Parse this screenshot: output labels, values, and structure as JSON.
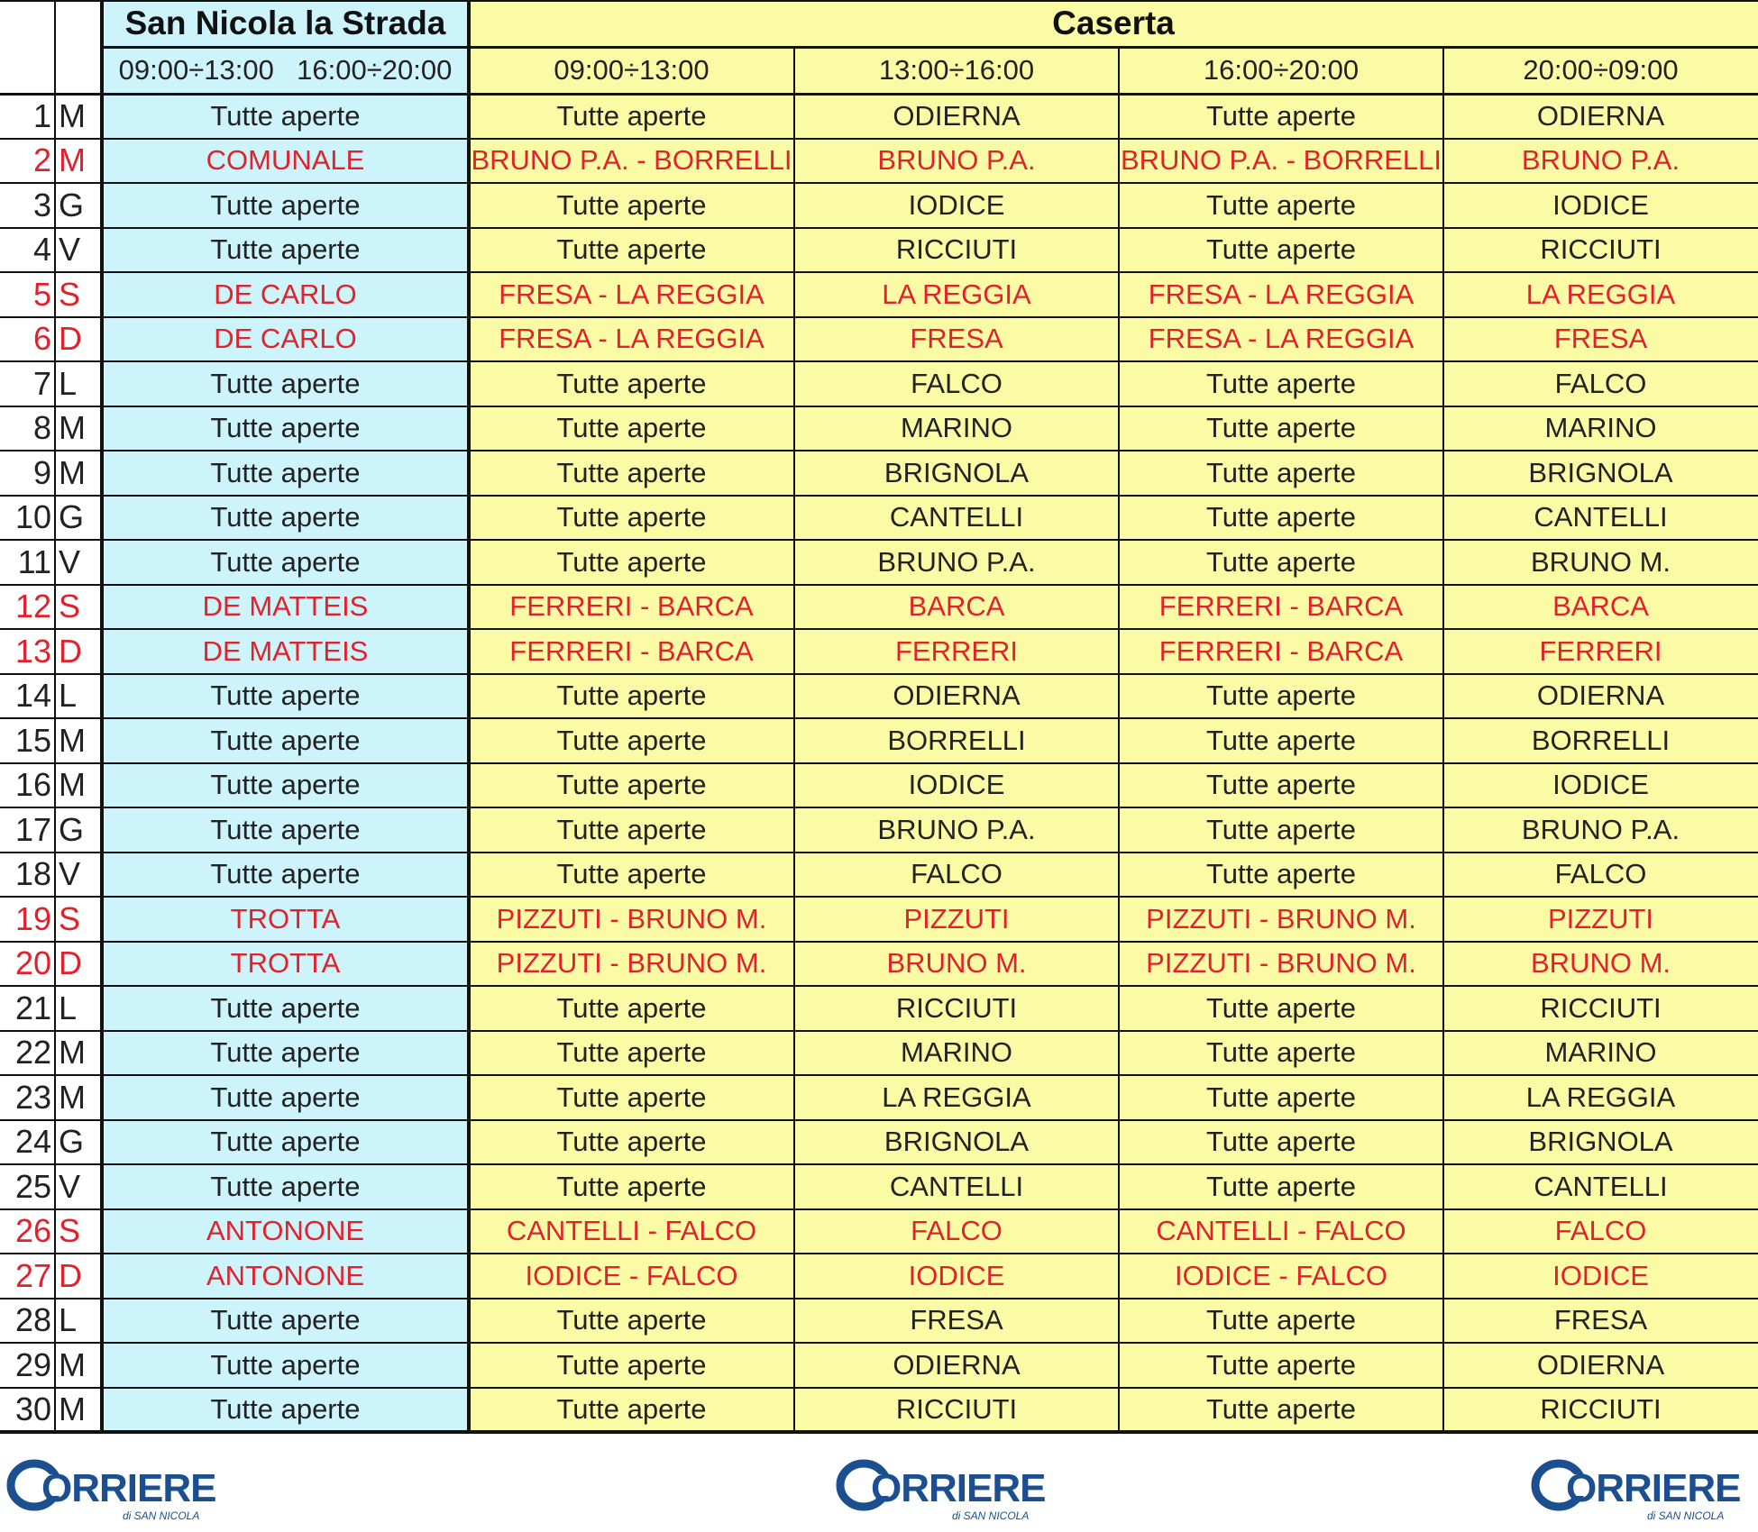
{
  "header": {
    "san_nicola_title": "San Nicola la Strada",
    "caserta_title": "Caserta",
    "san_nicola_times": [
      "09:00÷13:00",
      "16:00÷20:00"
    ],
    "caserta_times": [
      "09:00÷13:00",
      "13:00÷16:00",
      "16:00÷20:00",
      "20:00÷09:00"
    ]
  },
  "rows": [
    {
      "day": "1",
      "letter": "M",
      "sn": "Tutte aperte",
      "c": [
        "Tutte aperte",
        "ODIERNA",
        "Tutte aperte",
        "ODIERNA"
      ],
      "holiday": false
    },
    {
      "day": "2",
      "letter": "M",
      "sn": "COMUNALE",
      "c": [
        "BRUNO P.A. - BORRELLI",
        "BRUNO P.A.",
        "BRUNO P.A. - BORRELLI",
        "BRUNO P.A."
      ],
      "holiday": true
    },
    {
      "day": "3",
      "letter": "G",
      "sn": "Tutte aperte",
      "c": [
        "Tutte aperte",
        "IODICE",
        "Tutte aperte",
        "IODICE"
      ],
      "holiday": false
    },
    {
      "day": "4",
      "letter": "V",
      "sn": "Tutte aperte",
      "c": [
        "Tutte aperte",
        "RICCIUTI",
        "Tutte aperte",
        "RICCIUTI"
      ],
      "holiday": false
    },
    {
      "day": "5",
      "letter": "S",
      "sn": "DE CARLO",
      "c": [
        "FRESA - LA REGGIA",
        "LA REGGIA",
        "FRESA - LA REGGIA",
        "LA REGGIA"
      ],
      "holiday": true
    },
    {
      "day": "6",
      "letter": "D",
      "sn": "DE CARLO",
      "c": [
        "FRESA - LA REGGIA",
        "FRESA",
        "FRESA - LA REGGIA",
        "FRESA"
      ],
      "holiday": true
    },
    {
      "day": "7",
      "letter": "L",
      "sn": "Tutte aperte",
      "c": [
        "Tutte aperte",
        "FALCO",
        "Tutte aperte",
        "FALCO"
      ],
      "holiday": false
    },
    {
      "day": "8",
      "letter": "M",
      "sn": "Tutte aperte",
      "c": [
        "Tutte aperte",
        "MARINO",
        "Tutte aperte",
        "MARINO"
      ],
      "holiday": false
    },
    {
      "day": "9",
      "letter": "M",
      "sn": "Tutte aperte",
      "c": [
        "Tutte aperte",
        "BRIGNOLA",
        "Tutte aperte",
        "BRIGNOLA"
      ],
      "holiday": false
    },
    {
      "day": "10",
      "letter": "G",
      "sn": "Tutte aperte",
      "c": [
        "Tutte aperte",
        "CANTELLI",
        "Tutte aperte",
        "CANTELLI"
      ],
      "holiday": false
    },
    {
      "day": "11",
      "letter": "V",
      "sn": "Tutte aperte",
      "c": [
        "Tutte aperte",
        "BRUNO P.A.",
        "Tutte aperte",
        "BRUNO M."
      ],
      "holiday": false
    },
    {
      "day": "12",
      "letter": "S",
      "sn": "DE MATTEIS",
      "c": [
        "FERRERI - BARCA",
        "BARCA",
        "FERRERI - BARCA",
        "BARCA"
      ],
      "holiday": true
    },
    {
      "day": "13",
      "letter": "D",
      "sn": "DE MATTEIS",
      "c": [
        "FERRERI - BARCA",
        "FERRERI",
        "FERRERI - BARCA",
        "FERRERI"
      ],
      "holiday": true
    },
    {
      "day": "14",
      "letter": "L",
      "sn": "Tutte aperte",
      "c": [
        "Tutte aperte",
        "ODIERNA",
        "Tutte aperte",
        "ODIERNA"
      ],
      "holiday": false
    },
    {
      "day": "15",
      "letter": "M",
      "sn": "Tutte aperte",
      "c": [
        "Tutte aperte",
        "BORRELLI",
        "Tutte aperte",
        "BORRELLI"
      ],
      "holiday": false
    },
    {
      "day": "16",
      "letter": "M",
      "sn": "Tutte aperte",
      "c": [
        "Tutte aperte",
        "IODICE",
        "Tutte aperte",
        "IODICE"
      ],
      "holiday": false
    },
    {
      "day": "17",
      "letter": "G",
      "sn": "Tutte aperte",
      "c": [
        "Tutte aperte",
        "BRUNO P.A.",
        "Tutte aperte",
        "BRUNO P.A."
      ],
      "holiday": false
    },
    {
      "day": "18",
      "letter": "V",
      "sn": "Tutte aperte",
      "c": [
        "Tutte aperte",
        "FALCO",
        "Tutte aperte",
        "FALCO"
      ],
      "holiday": false
    },
    {
      "day": "19",
      "letter": "S",
      "sn": "TROTTA",
      "c": [
        "PIZZUTI - BRUNO M.",
        "PIZZUTI",
        "PIZZUTI - BRUNO M.",
        "PIZZUTI"
      ],
      "holiday": true
    },
    {
      "day": "20",
      "letter": "D",
      "sn": "TROTTA",
      "c": [
        "PIZZUTI - BRUNO M.",
        "BRUNO M.",
        "PIZZUTI - BRUNO M.",
        "BRUNO M."
      ],
      "holiday": true
    },
    {
      "day": "21",
      "letter": "L",
      "sn": "Tutte aperte",
      "c": [
        "Tutte aperte",
        "RICCIUTI",
        "Tutte aperte",
        "RICCIUTI"
      ],
      "holiday": false
    },
    {
      "day": "22",
      "letter": "M",
      "sn": "Tutte aperte",
      "c": [
        "Tutte aperte",
        "MARINO",
        "Tutte aperte",
        "MARINO"
      ],
      "holiday": false
    },
    {
      "day": "23",
      "letter": "M",
      "sn": "Tutte aperte",
      "c": [
        "Tutte aperte",
        "LA REGGIA",
        "Tutte aperte",
        "LA REGGIA"
      ],
      "holiday": false
    },
    {
      "day": "24",
      "letter": "G",
      "sn": "Tutte aperte",
      "c": [
        "Tutte aperte",
        "BRIGNOLA",
        "Tutte aperte",
        "BRIGNOLA"
      ],
      "holiday": false
    },
    {
      "day": "25",
      "letter": "V",
      "sn": "Tutte aperte",
      "c": [
        "Tutte aperte",
        "CANTELLI",
        "Tutte aperte",
        "CANTELLI"
      ],
      "holiday": false
    },
    {
      "day": "26",
      "letter": "S",
      "sn": "ANTONONE",
      "c": [
        "CANTELLI - FALCO",
        "FALCO",
        "CANTELLI - FALCO",
        "FALCO"
      ],
      "holiday": true
    },
    {
      "day": "27",
      "letter": "D",
      "sn": "ANTONONE",
      "c": [
        "IODICE - FALCO",
        "IODICE",
        "IODICE - FALCO",
        "IODICE"
      ],
      "holiday": true
    },
    {
      "day": "28",
      "letter": "L",
      "sn": "Tutte aperte",
      "c": [
        "Tutte aperte",
        "FRESA",
        "Tutte aperte",
        "FRESA"
      ],
      "holiday": false
    },
    {
      "day": "29",
      "letter": "M",
      "sn": "Tutte aperte",
      "c": [
        "Tutte aperte",
        "ODIERNA",
        "Tutte aperte",
        "ODIERNA"
      ],
      "holiday": false
    },
    {
      "day": "30",
      "letter": "M",
      "sn": "Tutte aperte",
      "c": [
        "Tutte aperte",
        "RICCIUTI",
        "Tutte aperte",
        "RICCIUTI"
      ],
      "holiday": false
    }
  ],
  "footer": {
    "logo_text": "CORRIERE",
    "logo_subtext": "di SAN NICOLA",
    "logo_count": 3
  },
  "colors": {
    "holiday_text": "#e0222c",
    "san_nicola_bg": "#cdf3fb",
    "caserta_bg": "#fbfba6",
    "logo_blue": "#1c4f8f"
  }
}
